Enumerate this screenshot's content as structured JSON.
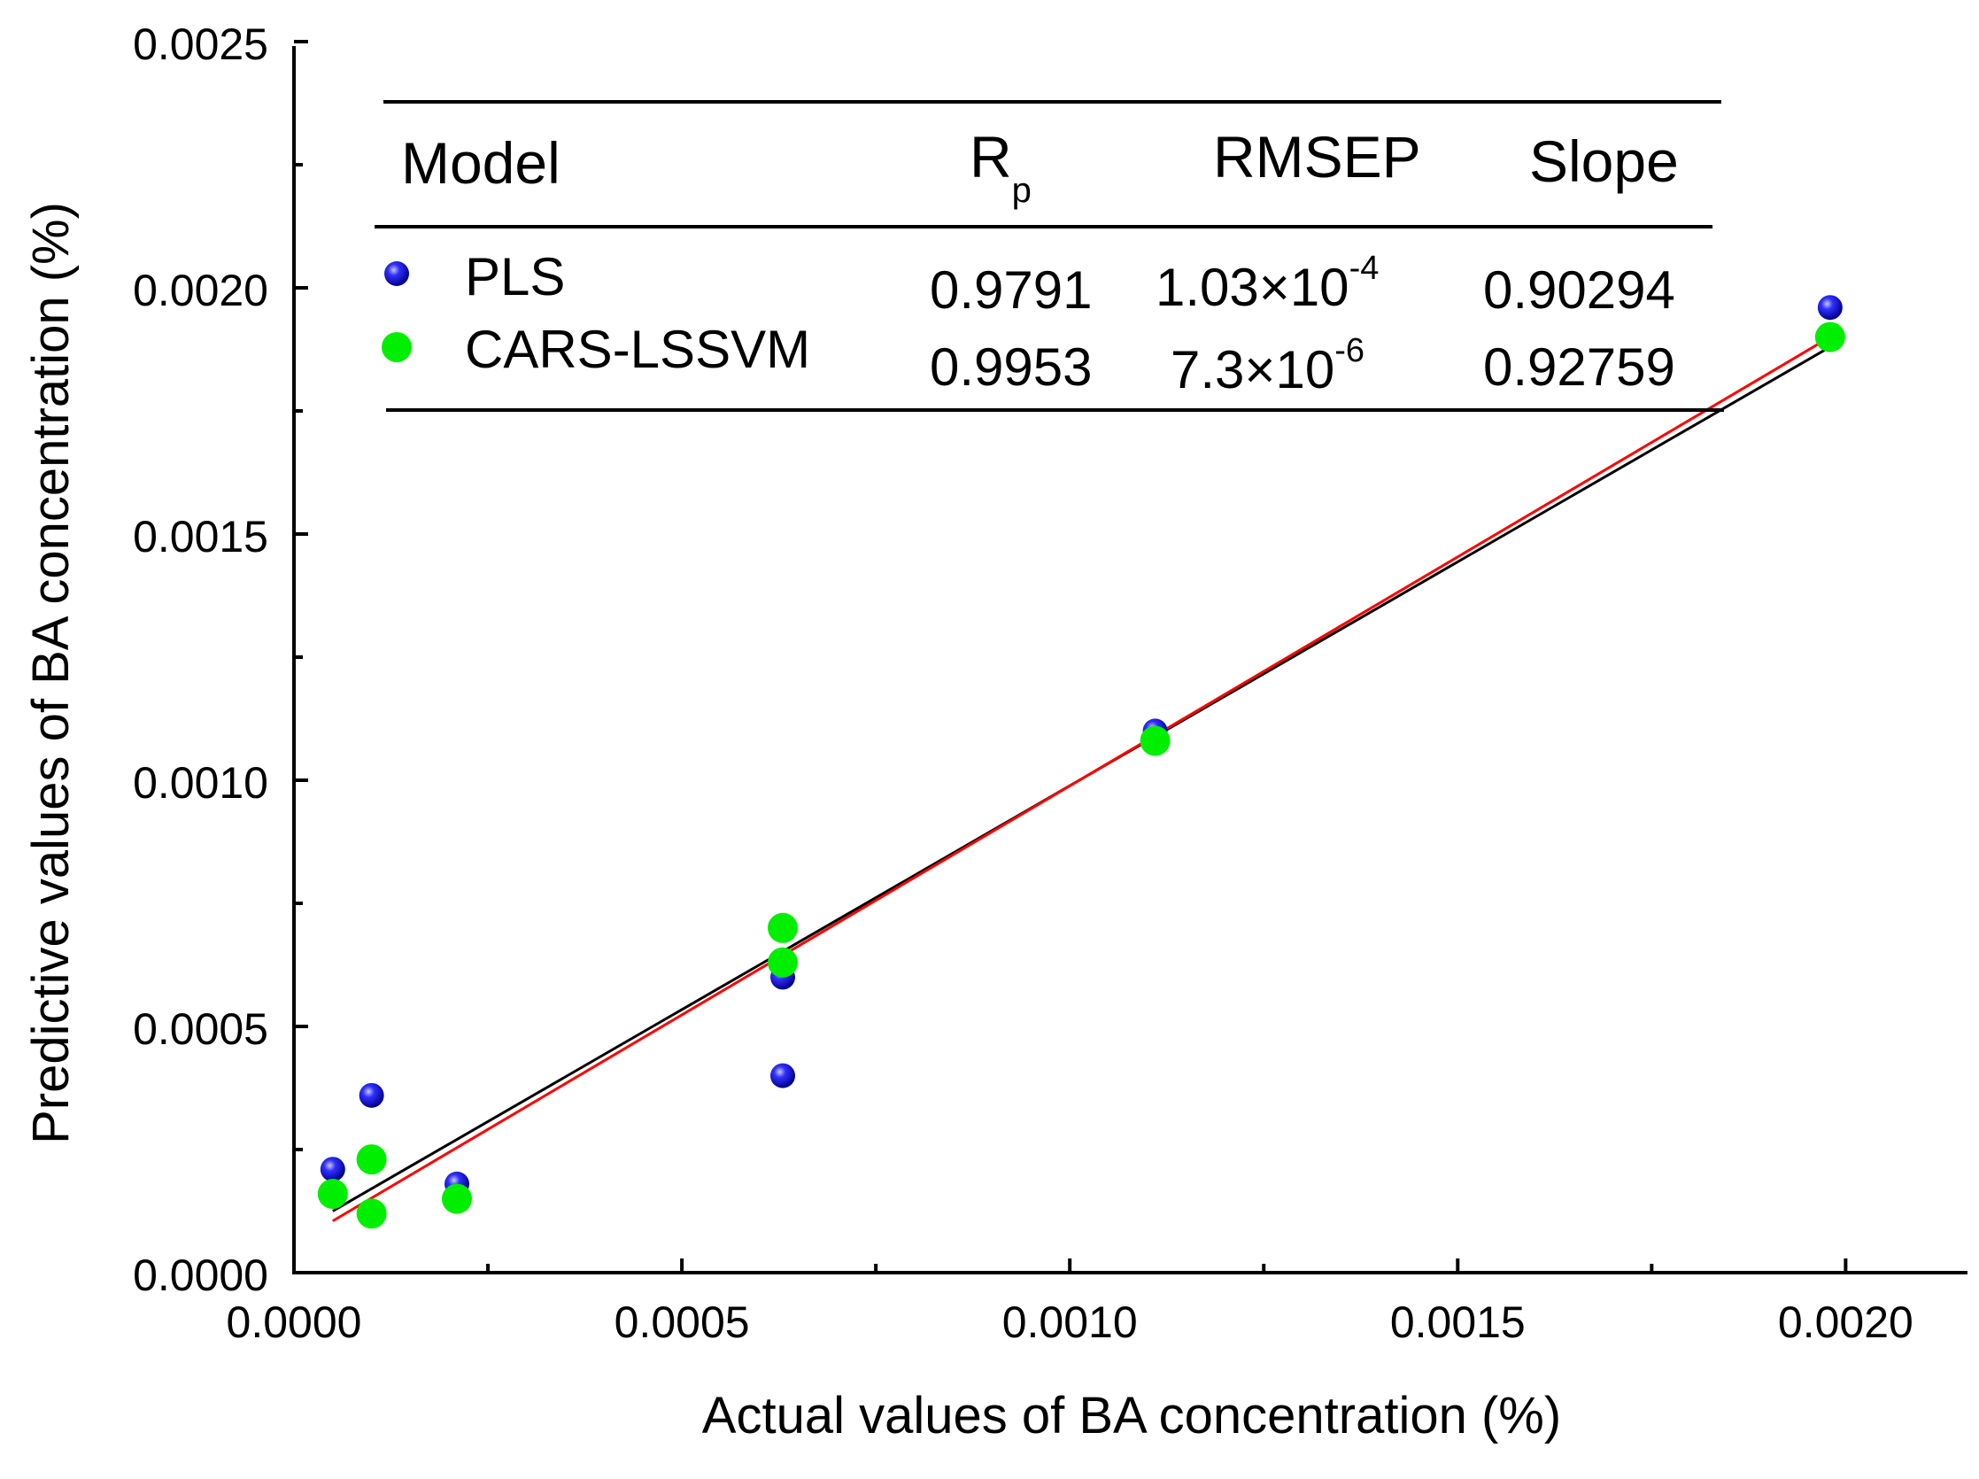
{
  "chart_data": {
    "type": "scatter",
    "title": "",
    "xlabel": "Actual values of BA concentration (%)",
    "ylabel": "Predictive values of BA concentration (%)",
    "xlim": [
      0,
      0.0021
    ],
    "ylim": [
      0,
      0.0025
    ],
    "x_ticks": [
      "0.0000",
      "0.0005",
      "0.0010",
      "0.0015",
      "0.0020"
    ],
    "y_ticks": [
      "0.0000",
      "0.0005",
      "0.0010",
      "0.0015",
      "0.0020",
      "0.0025"
    ],
    "x_tick_values": [
      0,
      0.0005,
      0.001,
      0.0015,
      0.002
    ],
    "y_tick_values": [
      0,
      0.0005,
      0.001,
      0.0015,
      0.002,
      0.0025
    ],
    "x_minor_tick_values": [
      0.00025,
      0.00075,
      0.00125,
      0.00175
    ],
    "y_minor_tick_values": [
      0.00025,
      0.00075,
      0.00125,
      0.00175,
      0.00225
    ],
    "grid": false,
    "series": [
      {
        "name": "PLS",
        "color": "#1010dd",
        "x": [
          5e-05,
          0.0001,
          0.00021,
          0.00063,
          0.00063,
          0.00111,
          0.00198
        ],
        "y": [
          0.00021,
          0.00036,
          0.00018,
          0.0006,
          0.0004,
          0.0011,
          0.00196
        ]
      },
      {
        "name": "CARS-LSSVM",
        "color": "#00ee00",
        "x": [
          5e-05,
          0.0001,
          0.0001,
          0.00021,
          0.00063,
          0.00063,
          0.00111,
          0.00198
        ],
        "y": [
          0.00016,
          0.00023,
          0.00012,
          0.00015,
          0.0007,
          0.00063,
          0.00108,
          0.0019
        ]
      }
    ],
    "fit_lines": [
      {
        "name": "PLS fit",
        "color": "#000000",
        "x": [
          5e-05,
          0.00198
        ],
        "y": [
          0.000125,
          0.00188
        ]
      },
      {
        "name": "CARS-LSSVM fit",
        "color": "#ff0000",
        "x": [
          5e-05,
          0.00198
        ],
        "y": [
          0.000105,
          0.0019
        ]
      }
    ],
    "legend": {
      "placement": "top-left",
      "headers": {
        "model": "Model",
        "rp_main": "R",
        "rp_sub": "p",
        "rmsep": "RMSEP",
        "slope": "Slope"
      },
      "rows": [
        {
          "model": "PLS",
          "rp": "0.9791",
          "rmsep_base": "1.03×10",
          "rmsep_exp": "-4",
          "slope": "0.90294"
        },
        {
          "model": "CARS-LSSVM",
          "rp": "0.9953",
          "rmsep_base": "7.3×10",
          "rmsep_exp": "-6",
          "slope": "0.92759"
        }
      ]
    }
  }
}
